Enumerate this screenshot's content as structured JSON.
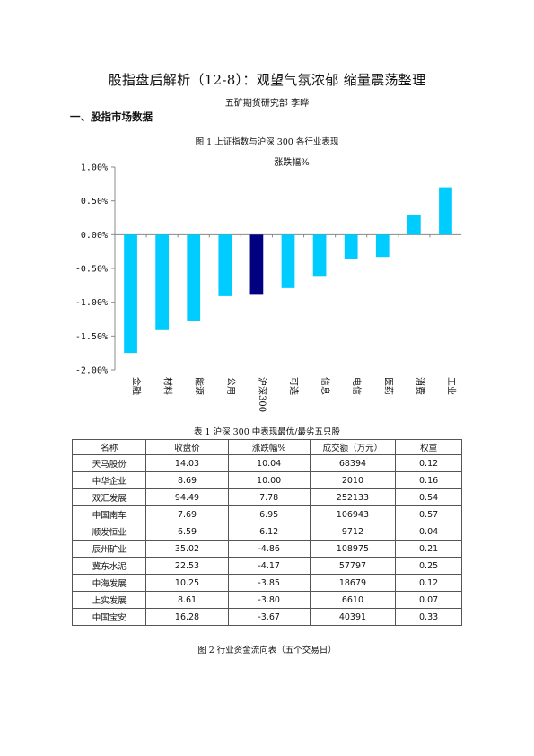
{
  "doc": {
    "title": "股指盘后解析（12-8）：观望气氛浓郁 缩量震荡整理",
    "author": "五矿期货研究部 李晔",
    "section": "一、股指市场数据",
    "fig1_caption": "图 1 上证指数与沪深 300 各行业表现",
    "table1_caption": "表 1 沪深 300 中表现最优/最劣五只股",
    "fig2_caption": "图 2 行业资金流向表（五个交易日）"
  },
  "chart_data": {
    "type": "bar",
    "title": "涨跌幅%",
    "categories": [
      "金融",
      "材料",
      "能源",
      "公用",
      "沪深300",
      "可选",
      "信息",
      "电信",
      "医药",
      "消费",
      "工业"
    ],
    "values": [
      -1.75,
      -1.4,
      -1.27,
      -0.91,
      -0.89,
      -0.79,
      -0.61,
      -0.36,
      -0.33,
      0.29,
      0.7
    ],
    "highlight_category": "沪深300",
    "ylim": [
      -2.0,
      1.0
    ],
    "yticks": [
      "1.00%",
      "0.50%",
      "0.00%",
      "-0.50%",
      "-1.00%",
      "-1.50%",
      "-2.00%"
    ],
    "ytick_values": [
      1.0,
      0.5,
      0.0,
      -0.5,
      -1.0,
      -1.5,
      -2.0
    ],
    "colors": {
      "bar": "#00CCFF",
      "highlight": "#000080"
    },
    "grid": false,
    "legend": "none"
  },
  "table": {
    "headers": [
      "名称",
      "收盘价",
      "涨跌幅%",
      "成交额（万元）",
      "权重"
    ],
    "rows": [
      [
        "天马股份",
        "14.03",
        "10.04",
        "68394",
        "0.12"
      ],
      [
        "中华企业",
        "8.69",
        "10.00",
        "2010",
        "0.16"
      ],
      [
        "双汇发展",
        "94.49",
        "7.78",
        "252133",
        "0.54"
      ],
      [
        "中国南车",
        "7.69",
        "6.95",
        "106943",
        "0.57"
      ],
      [
        "顺发恒业",
        "6.59",
        "6.12",
        "9712",
        "0.04"
      ],
      [
        "辰州矿业",
        "35.02",
        "-4.86",
        "108975",
        "0.21"
      ],
      [
        "冀东水泥",
        "22.53",
        "-4.17",
        "57797",
        "0.25"
      ],
      [
        "中海发展",
        "10.25",
        "-3.85",
        "18679",
        "0.12"
      ],
      [
        "上实发展",
        "8.61",
        "-3.80",
        "6610",
        "0.07"
      ],
      [
        "中国宝安",
        "16.28",
        "-3.67",
        "40391",
        "0.33"
      ]
    ]
  }
}
